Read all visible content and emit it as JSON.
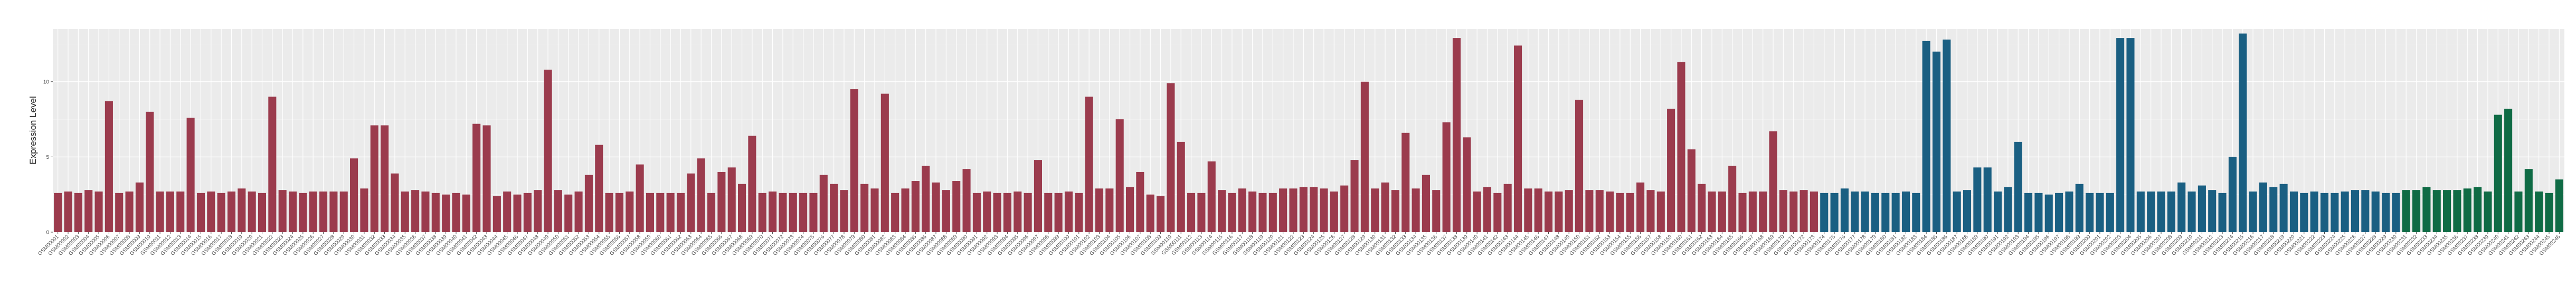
{
  "chart_data": {
    "type": "bar",
    "xlabel": "",
    "ylabel": "Expression Level",
    "ylim": [
      0,
      13.5
    ],
    "yticks": [
      0,
      5,
      10
    ],
    "grid": true,
    "legend": "none",
    "category_prefix": "GSM",
    "category_start": 1,
    "categories_note": "x tick labels are rotated sample IDs that are not legible in the source; rendered as a prefixed index",
    "groups": [
      {
        "color": "#9b3b4d",
        "values": [
          2.6,
          2.7,
          2.6,
          2.8,
          2.7,
          8.7,
          2.6,
          2.7,
          3.3,
          8.0,
          2.7,
          2.7,
          2.7,
          7.6,
          2.6,
          2.7,
          2.6,
          2.7,
          2.9,
          2.7,
          2.6,
          9.0,
          2.8,
          2.7,
          2.6,
          2.7,
          2.7,
          2.7,
          2.7,
          4.9,
          2.9,
          7.1,
          7.1,
          3.9,
          2.7,
          2.8,
          2.7,
          2.6,
          2.5,
          2.6,
          2.5,
          7.2,
          7.1,
          2.4,
          2.7,
          2.5,
          2.6,
          2.8,
          10.8,
          2.8,
          2.5,
          2.7,
          3.8,
          5.8,
          2.6,
          2.6,
          2.7,
          4.5,
          2.6,
          2.6,
          2.6,
          2.6,
          3.9,
          4.9,
          2.6,
          4.0,
          4.3,
          3.2,
          6.4,
          2.6,
          2.7,
          2.6,
          2.6,
          2.6,
          2.6,
          3.8,
          3.2,
          2.8,
          9.5,
          3.2,
          2.9,
          9.2,
          2.6,
          2.9,
          3.4,
          4.4,
          3.3,
          2.8,
          3.4,
          4.2,
          2.6,
          2.7,
          2.6,
          2.6,
          2.7,
          2.6,
          4.8,
          2.6,
          2.6,
          2.7,
          2.6,
          9.0,
          2.9,
          2.9,
          7.5,
          3.0,
          4.0,
          2.5,
          2.4,
          9.9,
          6.0,
          2.6,
          2.6,
          4.7,
          2.8,
          2.6,
          2.9,
          2.7,
          2.6,
          2.6,
          2.9,
          2.9,
          3.0,
          3.0,
          2.9,
          2.7,
          3.1,
          4.8,
          10.0,
          2.9,
          3.3,
          2.8,
          6.6,
          2.9,
          3.8,
          2.8,
          7.3,
          12.9,
          6.3,
          2.7,
          3.0,
          2.6,
          3.2,
          12.4,
          2.9,
          2.9,
          2.7,
          2.7,
          2.8,
          8.8,
          2.8,
          2.8,
          2.7,
          2.6,
          2.6,
          3.3,
          2.8,
          2.7,
          8.2,
          11.3,
          5.5,
          3.2,
          2.7,
          2.7,
          4.4,
          2.6,
          2.7,
          2.7,
          6.7,
          2.8,
          2.7,
          2.8,
          2.7
        ]
      },
      {
        "color": "#1a5f82",
        "values": [
          2.6,
          2.6,
          2.9,
          2.7,
          2.7,
          2.6,
          2.6,
          2.6,
          2.7,
          2.6,
          12.7,
          12.0,
          12.8,
          2.7,
          2.8,
          4.3,
          4.3,
          2.7,
          3.0,
          6.0,
          2.6,
          2.6,
          2.5,
          2.6,
          2.7,
          3.2,
          2.6,
          2.6,
          2.6,
          12.9,
          12.9,
          2.7,
          2.7,
          2.7,
          2.7,
          3.3,
          2.7,
          3.1,
          2.8,
          2.6,
          5.0,
          13.2,
          2.7,
          3.3,
          3.0,
          3.2,
          2.7,
          2.6,
          2.7,
          2.6,
          2.6,
          2.7,
          2.8,
          2.8,
          2.7,
          2.6,
          2.6
        ]
      },
      {
        "color": "#0f6b45",
        "values": [
          2.8,
          2.8,
          3.0,
          2.8,
          2.8,
          2.8,
          2.9,
          3.0,
          2.7,
          7.8,
          8.2,
          2.7,
          4.2,
          2.7,
          2.6,
          3.5
        ]
      }
    ]
  }
}
